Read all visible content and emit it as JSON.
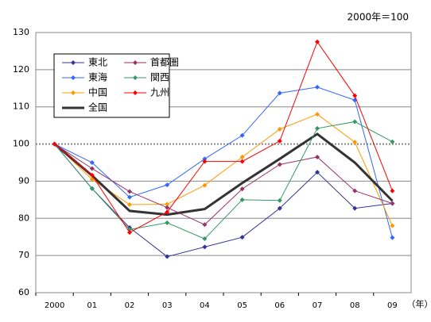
{
  "chart_data": {
    "type": "line",
    "annotation": "2000年＝100",
    "x_unit": "（年）",
    "categories": [
      "2000",
      "01",
      "02",
      "03",
      "04",
      "05",
      "06",
      "07",
      "08",
      "09"
    ],
    "ylim": [
      60,
      130
    ],
    "yticks": [
      60,
      70,
      80,
      90,
      100,
      110,
      120,
      130
    ],
    "grid": true,
    "reference_line": 100,
    "legend": "upper left",
    "series": [
      {
        "name": "東北",
        "color": "#333399",
        "marker": true,
        "line_width": 1,
        "values": [
          100,
          88,
          77.5,
          69.7,
          72.3,
          74.9,
          82.7,
          92.4,
          82.7,
          84
        ]
      },
      {
        "name": "東海",
        "color": "#3366ff",
        "marker": true,
        "line_width": 1,
        "values": [
          100,
          95,
          85.7,
          89,
          96,
          102.3,
          113.7,
          115.3,
          111.8,
          74.8
        ]
      },
      {
        "name": "中国",
        "color": "#ff9900",
        "marker": true,
        "line_width": 1,
        "values": [
          100,
          90.5,
          83.7,
          83.8,
          88.9,
          96.5,
          104,
          108,
          100.5,
          78
        ]
      },
      {
        "name": "全国",
        "color": "#333333",
        "marker": false,
        "line_width": 3,
        "values": [
          100,
          91.5,
          82,
          81,
          82.5,
          89.5,
          96,
          102.7,
          95,
          84.7
        ]
      },
      {
        "name": "首都圏",
        "color": "#993366",
        "marker": true,
        "line_width": 1,
        "values": [
          100,
          93.4,
          87.2,
          82.9,
          78.3,
          87.9,
          94.5,
          96.5,
          87.4,
          84
        ]
      },
      {
        "name": "関西",
        "color": "#339966",
        "marker": true,
        "line_width": 1,
        "values": [
          100,
          88,
          77,
          78.8,
          74.5,
          85,
          84.8,
          104.2,
          106,
          100.6
        ]
      },
      {
        "name": "九州",
        "color": "#ff0000",
        "marker": true,
        "line_width": 1,
        "values": [
          100,
          91.6,
          76.2,
          81.7,
          95.3,
          95.3,
          100.8,
          127.5,
          113,
          87.4
        ]
      }
    ]
  }
}
